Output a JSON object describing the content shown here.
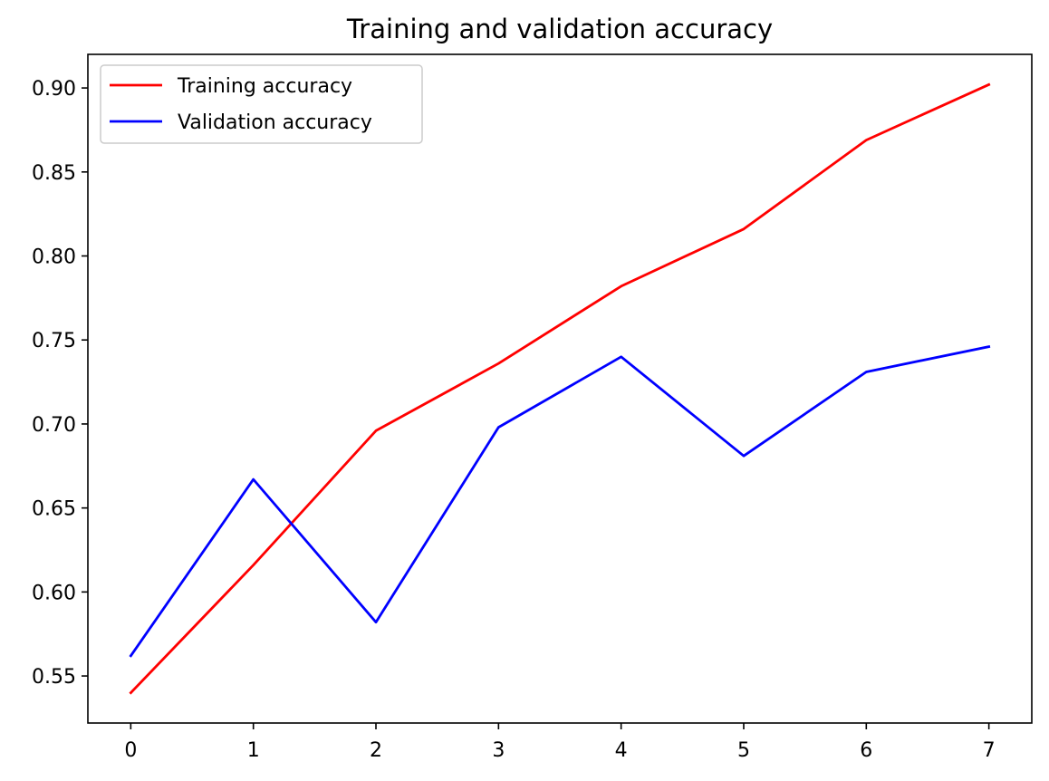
{
  "chart_data": {
    "type": "line",
    "title": "Training and validation accuracy",
    "xlabel": "",
    "ylabel": "",
    "x": [
      0,
      1,
      2,
      3,
      4,
      5,
      6,
      7
    ],
    "xlim": [
      -0.35,
      7.35
    ],
    "ylim": [
      0.522,
      0.92
    ],
    "xticks": [
      0,
      1,
      2,
      3,
      4,
      5,
      6,
      7
    ],
    "yticks": [
      0.55,
      0.6,
      0.65,
      0.7,
      0.75,
      0.8,
      0.85,
      0.9
    ],
    "ytick_labels": [
      "0.55",
      "0.60",
      "0.65",
      "0.70",
      "0.75",
      "0.80",
      "0.85",
      "0.90"
    ],
    "grid": false,
    "legend_position": "top-left",
    "series": [
      {
        "name": "Training accuracy",
        "color": "#ff0000",
        "values": [
          0.54,
          0.616,
          0.696,
          0.736,
          0.782,
          0.816,
          0.869,
          0.902
        ]
      },
      {
        "name": "Validation accuracy",
        "color": "#0000ff",
        "values": [
          0.562,
          0.667,
          0.582,
          0.698,
          0.74,
          0.681,
          0.731,
          0.746
        ]
      }
    ]
  }
}
